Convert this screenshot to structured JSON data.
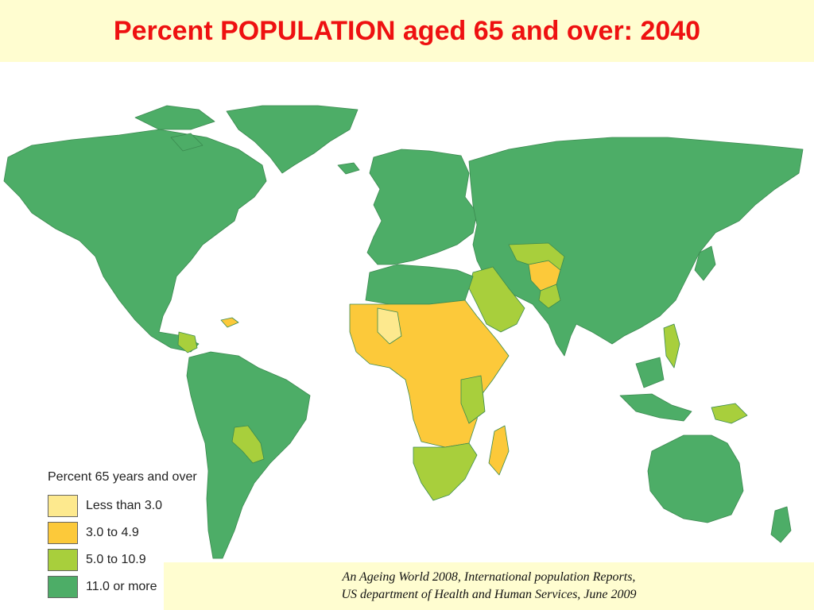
{
  "title": "Percent POPULATION aged 65 and over: 2040",
  "legend": {
    "title": "Percent 65 years and over",
    "items": [
      {
        "label": "Less than 3.0",
        "color": "#fde98e"
      },
      {
        "label": "3.0 to 4.9",
        "color": "#fcc93a"
      },
      {
        "label": "5.0 to 10.9",
        "color": "#a8cf3c"
      },
      {
        "label": "11.0 or more",
        "color": "#4dad67"
      }
    ]
  },
  "source": {
    "line1": "An Ageing World 2008, International population Reports,",
    "line2": "US department of Health and Human Services, June  2009"
  },
  "colors": {
    "ocean": "#ffffff",
    "header_bg": "#fffdd0",
    "title_text": "#ee1111"
  }
}
